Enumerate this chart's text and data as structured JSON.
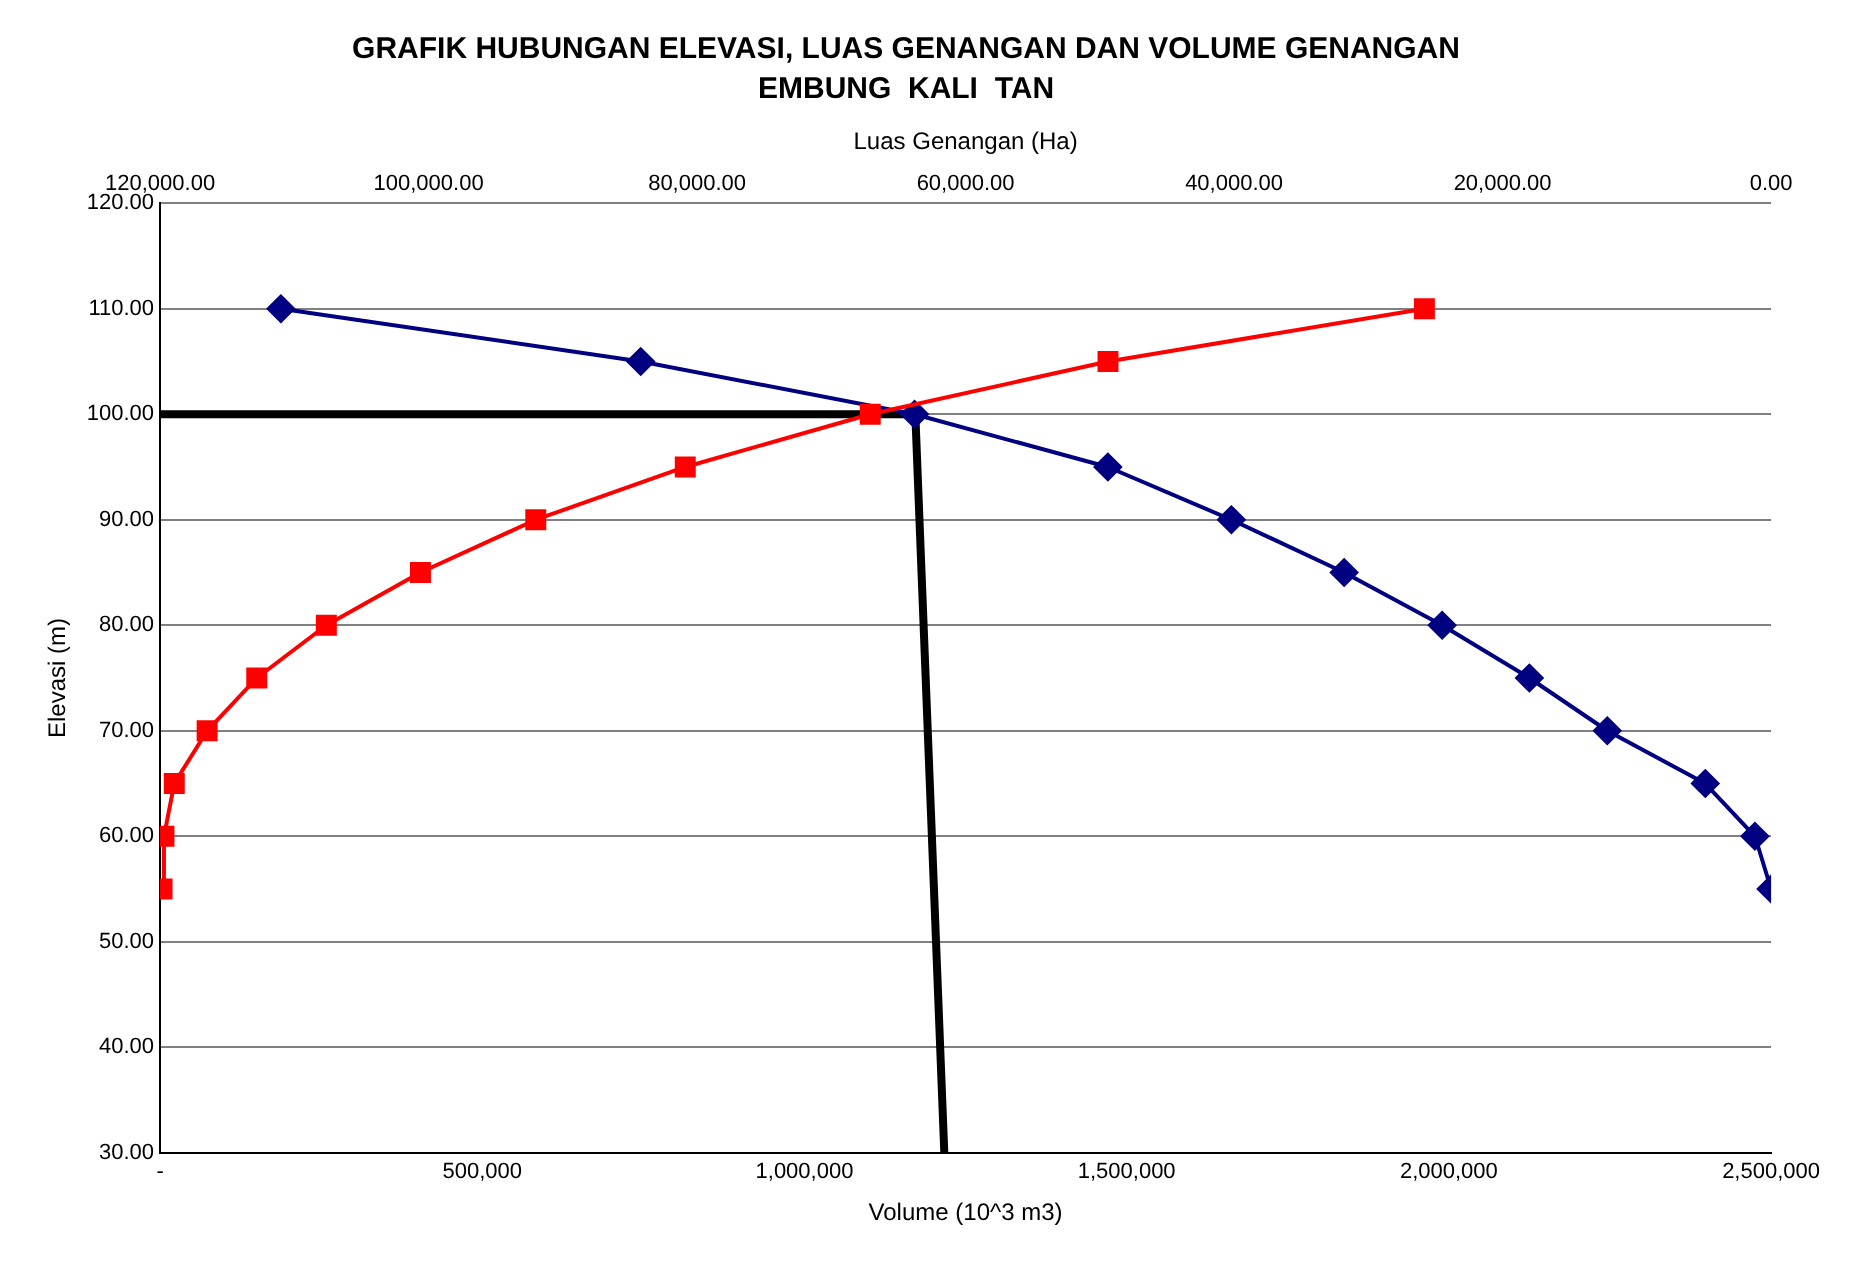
{
  "chart_data": {
    "type": "line",
    "title": "GRAFIK HUBUNGAN ELEVASI, LUAS GENANGAN DAN VOLUME GENANGAN",
    "subtitle": "EMBUNG  KALI  TAN",
    "xlabel": "Volume (10^3 m3)",
    "x2label": "Luas Genangan (Ha)",
    "ylabel": "Elevasi (m)",
    "xlim": [
      0,
      2500000
    ],
    "xticks": [
      {
        "value": 0,
        "label": "-"
      },
      {
        "value": 500000,
        "label": "500,000"
      },
      {
        "value": 1000000,
        "label": "1,000,000"
      },
      {
        "value": 1500000,
        "label": "1,500,000"
      },
      {
        "value": 2000000,
        "label": "2,000,000"
      },
      {
        "value": 2500000,
        "label": "2,500,000"
      }
    ],
    "x2lim": [
      120000,
      0
    ],
    "x2ticks": [
      {
        "value": 120000,
        "label": "120,000.00"
      },
      {
        "value": 100000,
        "label": "100,000.00"
      },
      {
        "value": 80000,
        "label": "80,000.00"
      },
      {
        "value": 60000,
        "label": "60,000.00"
      },
      {
        "value": 40000,
        "label": "40,000.00"
      },
      {
        "value": 20000,
        "label": "20,000.00"
      },
      {
        "value": 0,
        "label": "0.00"
      }
    ],
    "ylim": [
      30,
      120
    ],
    "yticks": [
      {
        "value": 30,
        "label": "30.00"
      },
      {
        "value": 40,
        "label": "40.00"
      },
      {
        "value": 50,
        "label": "50.00"
      },
      {
        "value": 60,
        "label": "60.00"
      },
      {
        "value": 70,
        "label": "70.00"
      },
      {
        "value": 80,
        "label": "80.00"
      },
      {
        "value": 90,
        "label": "90.00"
      },
      {
        "value": 100,
        "label": "100.00"
      },
      {
        "value": 110,
        "label": "110.00"
      },
      {
        "value": 120,
        "label": "120.00"
      }
    ],
    "grid": "y",
    "legend": false,
    "series": [
      {
        "color": "#ff0000",
        "marker": "square",
        "x": [
          3000,
          6000,
          22000,
          73000,
          150000,
          258000,
          404000,
          583000,
          815000,
          1102000,
          1471000,
          1962000
        ],
        "values": [
          55,
          60,
          65,
          70,
          75,
          80,
          85,
          90,
          95,
          100,
          105,
          110
        ]
      },
      {
        "color": "#000080",
        "marker": "diamond",
        "axis": "x2",
        "x": [
          111000,
          84200,
          63800,
          49400,
          40200,
          31800,
          24500,
          18000,
          12200,
          4900,
          1200,
          0
        ],
        "values": [
          110,
          105,
          100,
          95,
          90,
          85,
          80,
          75,
          70,
          65,
          60,
          55
        ]
      },
      {
        "color": "#000000",
        "marker": "none",
        "x": [
          0,
          1172000,
          1217000
        ],
        "values": [
          100,
          100,
          30
        ]
      }
    ]
  }
}
